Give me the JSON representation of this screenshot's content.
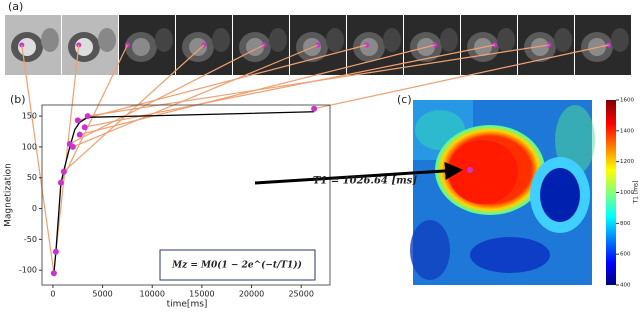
{
  "panel_labels": [
    "(a)",
    "(b)",
    "(c)"
  ],
  "chart_data": [
    {
      "type": "scatter",
      "xlabel": "time[ms]",
      "ylabel": "Magnetization",
      "x": [
        100,
        300,
        800,
        1100,
        1700,
        2000,
        2500,
        2700,
        3200,
        3500,
        26300
      ],
      "values": [
        -105,
        -70,
        42,
        60,
        105,
        100,
        143,
        120,
        132,
        150,
        162
      ],
      "color": "#cc33cc",
      "fit_x": [
        100,
        300,
        800,
        1100,
        1700,
        2200,
        2700,
        3500,
        26300
      ],
      "fit_values": [
        -105,
        -70,
        40,
        62,
        100,
        128,
        140,
        148,
        157
      ],
      "fit_color": "#000000",
      "xlim": [
        -1100,
        27900
      ],
      "ylim": [
        -124,
        168
      ],
      "xticks": [
        0,
        5000,
        10000,
        15000,
        20000,
        25000
      ],
      "yticks": [
        -100,
        -50,
        0,
        50,
        100,
        150
      ],
      "equation": "Mz = M0(1 − 2e^(−t/T1))",
      "annotation": "T1 = 1026.64 [ms]"
    },
    {
      "type": "colorbar",
      "label": "T1 [ms]",
      "ylim": [
        400,
        1600
      ],
      "yticks": [
        400,
        600,
        800,
        1000,
        1200,
        1400,
        1600
      ]
    }
  ]
}
